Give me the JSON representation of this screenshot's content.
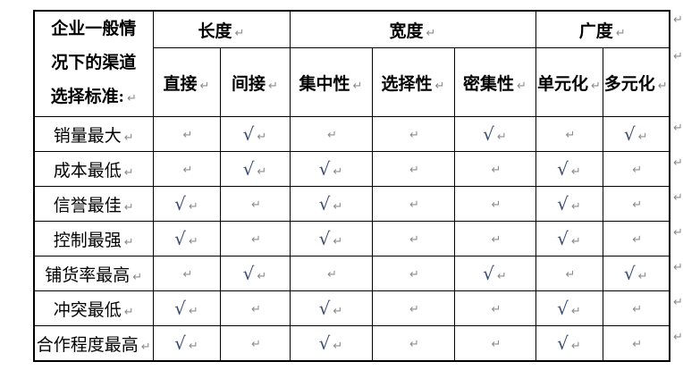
{
  "document": {
    "corner": {
      "lines": [
        "企业一般情",
        "况下的渠道",
        "选择标准:"
      ]
    },
    "groups": [
      {
        "label": "长度",
        "span": 2
      },
      {
        "label": "宽度",
        "span": 3
      },
      {
        "label": "广度",
        "span": 2
      }
    ],
    "columns": [
      "直接",
      "间接",
      "集中性",
      "选择性",
      "密集性",
      "单元化",
      "多元化"
    ],
    "rows": [
      {
        "label": "销量最大",
        "checks": [
          0,
          1,
          0,
          0,
          1,
          0,
          1
        ]
      },
      {
        "label": "成本最低",
        "checks": [
          0,
          1,
          1,
          0,
          0,
          1,
          0
        ]
      },
      {
        "label": "信誉最佳",
        "checks": [
          1,
          0,
          1,
          0,
          0,
          1,
          0
        ]
      },
      {
        "label": "控制最强",
        "checks": [
          1,
          0,
          1,
          0,
          0,
          1,
          0
        ]
      },
      {
        "label": "铺货率最高",
        "checks": [
          0,
          1,
          0,
          0,
          1,
          0,
          1
        ]
      },
      {
        "label": "冲突最低",
        "checks": [
          1,
          0,
          1,
          0,
          0,
          1,
          0
        ]
      },
      {
        "label": "合作程度最高",
        "checks": [
          1,
          0,
          1,
          0,
          0,
          1,
          0
        ]
      }
    ],
    "glyphs": {
      "check": "√",
      "paragraph_mark": "↵"
    },
    "colors": {
      "check": "#3a4d70",
      "paragraph_mark": "#8c8c8c",
      "border": "#000000",
      "text": "#000000",
      "background": "#ffffff"
    }
  }
}
